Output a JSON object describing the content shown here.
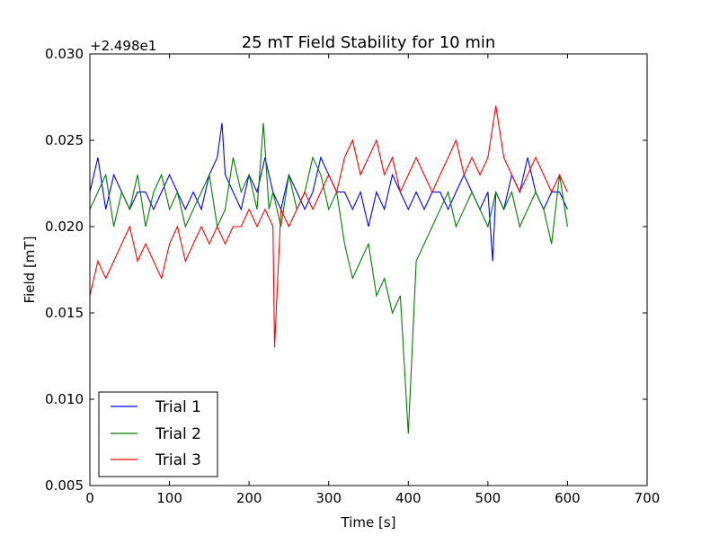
{
  "chart_data": {
    "type": "line",
    "title": "25 mT Field Stability for 10 min",
    "xlabel": "Time [s]",
    "ylabel": "Field [mT]",
    "xlim": [
      0,
      700
    ],
    "ylim": [
      0.005,
      0.03
    ],
    "y_offset_label": "+2.498e1",
    "grid": false,
    "legend_placement": "lower-left",
    "x_ticks": [
      0,
      100,
      200,
      300,
      400,
      500,
      600,
      700
    ],
    "x_tick_labels": [
      "0",
      "100",
      "200",
      "300",
      "400",
      "500",
      "600",
      "700"
    ],
    "y_ticks": [
      0.005,
      0.01,
      0.015,
      0.02,
      0.025,
      0.03
    ],
    "y_tick_labels": [
      "0.005",
      "0.010",
      "0.015",
      "0.020",
      "0.025",
      "0.030"
    ],
    "series": [
      {
        "name": "Trial 1",
        "color": "#0000ff",
        "x": [
          0,
          10,
          20,
          30,
          40,
          50,
          60,
          70,
          80,
          90,
          100,
          110,
          120,
          130,
          140,
          150,
          160,
          166,
          170,
          180,
          190,
          200,
          210,
          220,
          230,
          240,
          250,
          260,
          270,
          280,
          290,
          300,
          310,
          320,
          330,
          340,
          350,
          360,
          370,
          380,
          390,
          400,
          410,
          420,
          430,
          440,
          450,
          460,
          470,
          480,
          490,
          500,
          506,
          510,
          520,
          530,
          540,
          550,
          560,
          570,
          580,
          590,
          600
        ],
        "y": [
          0.022,
          0.024,
          0.021,
          0.023,
          0.022,
          0.021,
          0.022,
          0.022,
          0.021,
          0.022,
          0.023,
          0.022,
          0.021,
          0.022,
          0.021,
          0.023,
          0.024,
          0.026,
          0.023,
          0.022,
          0.021,
          0.023,
          0.022,
          0.024,
          0.022,
          0.021,
          0.023,
          0.022,
          0.021,
          0.022,
          0.024,
          0.023,
          0.022,
          0.022,
          0.021,
          0.022,
          0.02,
          0.022,
          0.021,
          0.023,
          0.022,
          0.021,
          0.022,
          0.021,
          0.022,
          0.022,
          0.021,
          0.022,
          0.023,
          0.022,
          0.021,
          0.022,
          0.018,
          0.022,
          0.021,
          0.023,
          0.022,
          0.024,
          0.022,
          0.021,
          0.022,
          0.022,
          0.021
        ]
      },
      {
        "name": "Trial 2",
        "color": "#007f00",
        "x": [
          0,
          10,
          20,
          30,
          40,
          50,
          60,
          70,
          80,
          90,
          100,
          110,
          120,
          130,
          140,
          150,
          160,
          170,
          180,
          190,
          200,
          210,
          218,
          225,
          230,
          240,
          250,
          260,
          270,
          280,
          290,
          300,
          310,
          320,
          330,
          340,
          350,
          360,
          370,
          380,
          390,
          400,
          410,
          420,
          430,
          440,
          450,
          460,
          470,
          480,
          490,
          500,
          510,
          520,
          530,
          540,
          550,
          560,
          570,
          580,
          590,
          600
        ],
        "y": [
          0.021,
          0.022,
          0.023,
          0.02,
          0.022,
          0.021,
          0.023,
          0.02,
          0.022,
          0.023,
          0.021,
          0.022,
          0.02,
          0.021,
          0.022,
          0.023,
          0.02,
          0.021,
          0.024,
          0.022,
          0.023,
          0.021,
          0.026,
          0.021,
          0.022,
          0.02,
          0.023,
          0.021,
          0.022,
          0.024,
          0.023,
          0.021,
          0.022,
          0.019,
          0.017,
          0.018,
          0.019,
          0.016,
          0.017,
          0.015,
          0.016,
          0.008,
          0.018,
          0.019,
          0.02,
          0.021,
          0.022,
          0.02,
          0.021,
          0.022,
          0.021,
          0.02,
          0.022,
          0.021,
          0.022,
          0.02,
          0.021,
          0.022,
          0.021,
          0.019,
          0.023,
          0.02
        ]
      },
      {
        "name": "Trial 3",
        "color": "#ff0000",
        "x": [
          0,
          10,
          20,
          30,
          40,
          50,
          60,
          70,
          80,
          90,
          100,
          110,
          120,
          130,
          140,
          150,
          160,
          170,
          180,
          190,
          200,
          210,
          220,
          230,
          232,
          240,
          250,
          260,
          270,
          280,
          290,
          300,
          310,
          320,
          330,
          340,
          350,
          360,
          370,
          380,
          390,
          400,
          410,
          420,
          430,
          440,
          450,
          460,
          470,
          480,
          490,
          500,
          510,
          520,
          530,
          540,
          550,
          560,
          570,
          580,
          590,
          600
        ],
        "y": [
          0.016,
          0.018,
          0.017,
          0.018,
          0.019,
          0.02,
          0.018,
          0.019,
          0.018,
          0.017,
          0.019,
          0.02,
          0.018,
          0.019,
          0.02,
          0.019,
          0.02,
          0.019,
          0.02,
          0.02,
          0.021,
          0.02,
          0.021,
          0.02,
          0.013,
          0.021,
          0.02,
          0.021,
          0.022,
          0.021,
          0.022,
          0.023,
          0.022,
          0.024,
          0.025,
          0.023,
          0.024,
          0.025,
          0.023,
          0.024,
          0.022,
          0.023,
          0.024,
          0.023,
          0.022,
          0.023,
          0.024,
          0.025,
          0.023,
          0.024,
          0.023,
          0.024,
          0.027,
          0.024,
          0.023,
          0.022,
          0.023,
          0.024,
          0.023,
          0.022,
          0.023,
          0.022
        ]
      }
    ]
  }
}
